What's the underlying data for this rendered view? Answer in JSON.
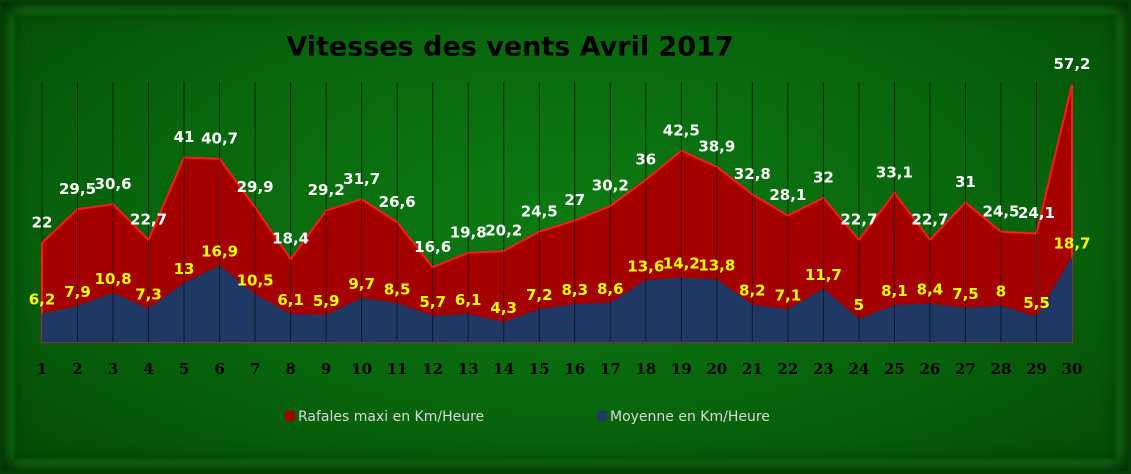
{
  "chart_data": {
    "type": "area",
    "title": "Vitesses des vents Avril 2017",
    "categories": [
      "1",
      "2",
      "3",
      "4",
      "5",
      "6",
      "7",
      "8",
      "9",
      "10",
      "11",
      "12",
      "13",
      "14",
      "15",
      "16",
      "17",
      "18",
      "19",
      "20",
      "21",
      "22",
      "23",
      "24",
      "25",
      "26",
      "27",
      "28",
      "29",
      "30"
    ],
    "ylim": [
      0,
      60
    ],
    "series": [
      {
        "name": "Rafales maxi en Km/Heure",
        "color": "#a50000",
        "values": [
          22,
          29.5,
          30.6,
          22.7,
          41,
          40.7,
          29.9,
          18.4,
          29.2,
          31.7,
          26.6,
          16.6,
          19.8,
          20.2,
          24.5,
          27,
          30.2,
          36,
          42.5,
          38.9,
          32.8,
          28.1,
          32,
          22.7,
          33.1,
          22.7,
          31,
          24.5,
          24.1,
          57.2
        ],
        "value_labels": [
          "22",
          "29,5",
          "30,6",
          "22,7",
          "41",
          "40,7",
          "29,9",
          "18,4",
          "29,2",
          "31,7",
          "26,6",
          "16,6",
          "19,8",
          "20,2",
          "24,5",
          "27",
          "30,2",
          "36",
          "42,5",
          "38,9",
          "32,8",
          "28,1",
          "32",
          "22,7",
          "33,1",
          "22,7",
          "31",
          "24,5",
          "24,1",
          "57,2"
        ]
      },
      {
        "name": "Moyenne en Km/Heure",
        "color": "#1f3864",
        "values": [
          6.2,
          7.9,
          10.8,
          7.3,
          13,
          16.9,
          10.5,
          6.1,
          5.9,
          9.7,
          8.5,
          5.7,
          6.1,
          4.3,
          7.2,
          8.3,
          8.6,
          13.6,
          14.2,
          13.8,
          8.2,
          7.1,
          11.7,
          5,
          8.1,
          8.4,
          7.5,
          8,
          5.5,
          18.7
        ],
        "value_labels": [
          "6,2",
          "7,9",
          "10,8",
          "7,3",
          "13",
          "16,9",
          "10,5",
          "6,1",
          "5,9",
          "9,7",
          "8,5",
          "5,7",
          "6,1",
          "4,3",
          "7,2",
          "8,3",
          "8,6",
          "13,6",
          "14,2",
          "13,8",
          "8,2",
          "7,1",
          "11,7",
          "5",
          "8,1",
          "8,4",
          "7,5",
          "8",
          "5,5",
          "18,7"
        ]
      }
    ]
  }
}
